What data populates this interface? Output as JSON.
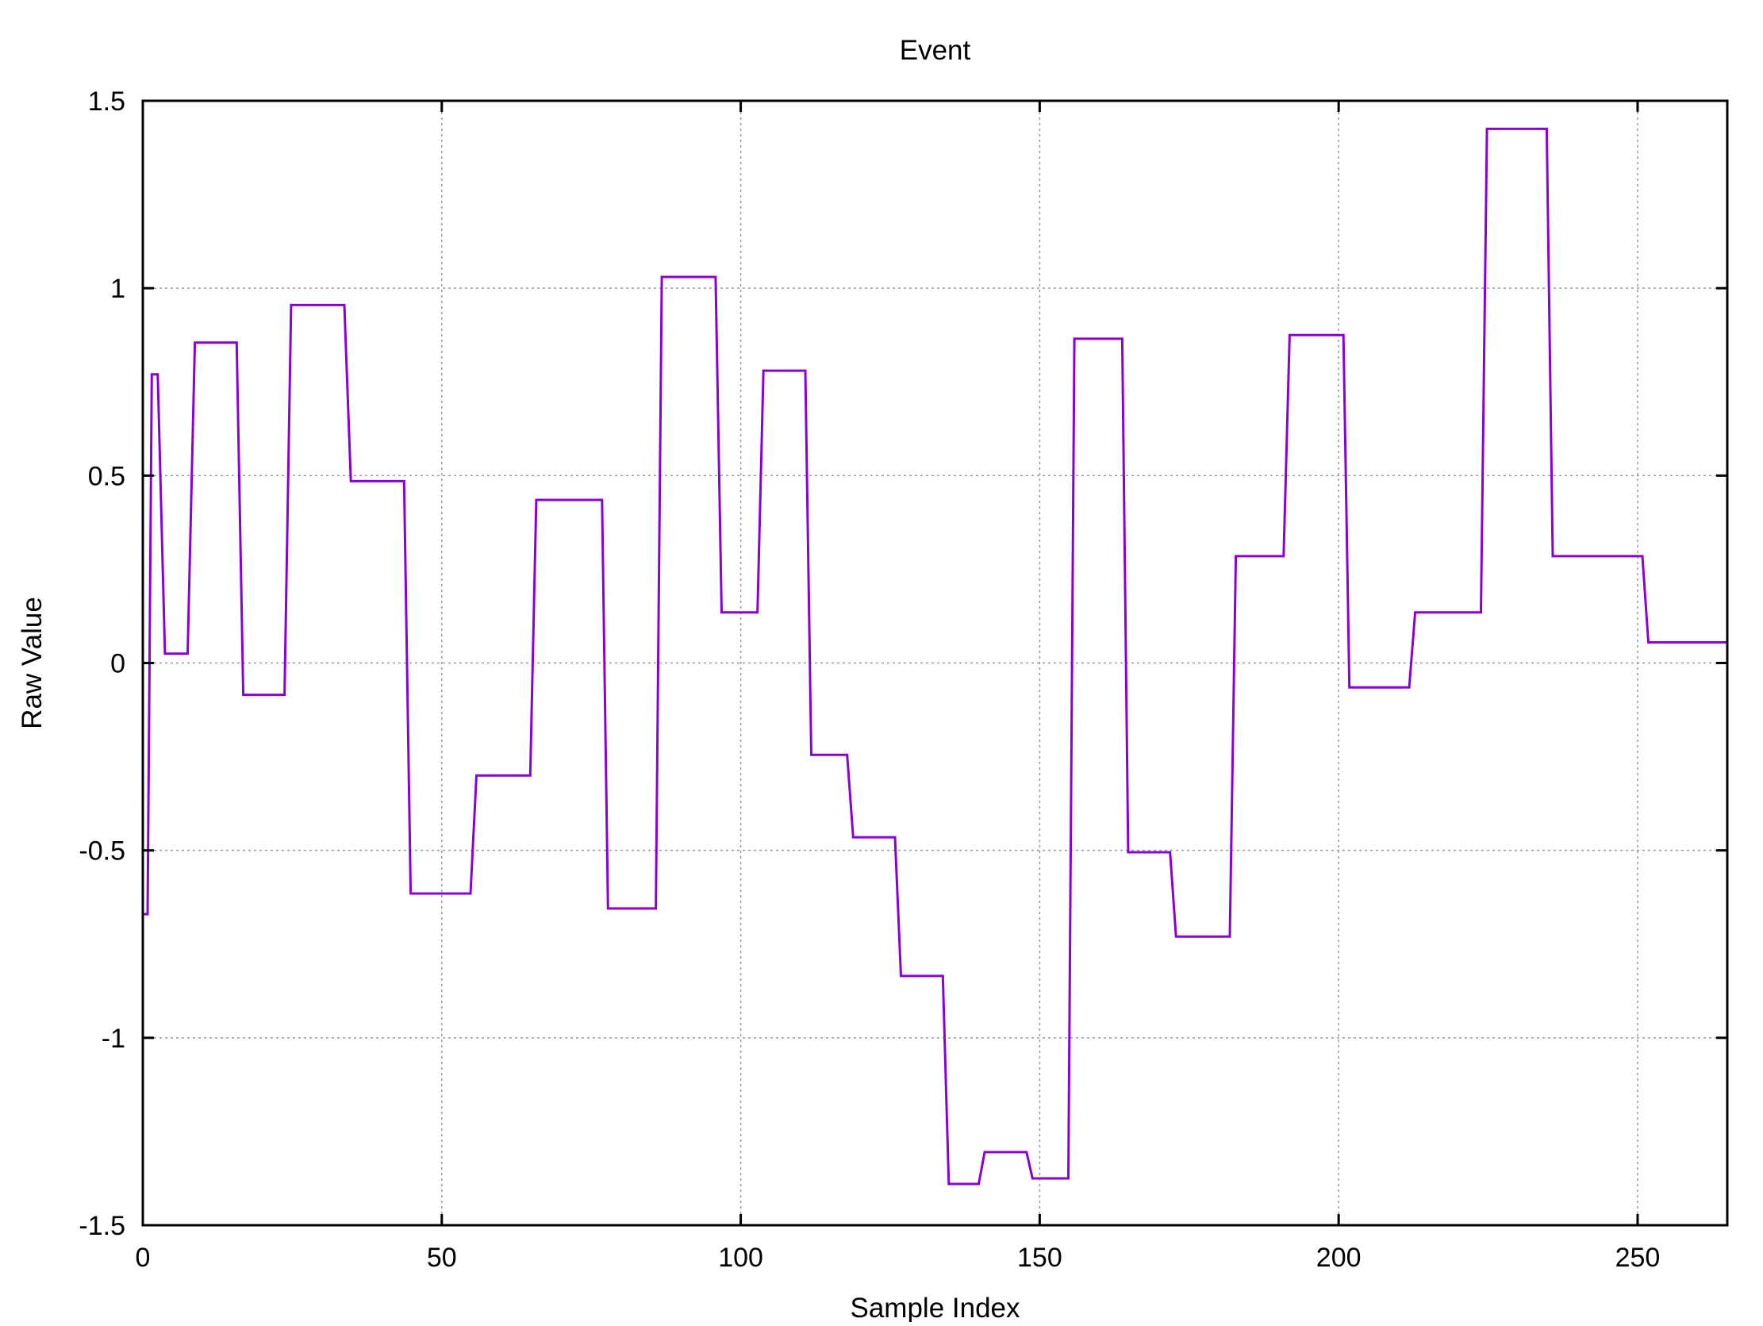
{
  "chart_data": {
    "type": "line",
    "title": "Event",
    "xlabel": "Sample Index",
    "ylabel": "Raw Value",
    "xlim": [
      0,
      265
    ],
    "ylim": [
      -1.5,
      1.5
    ],
    "xticks": [
      0,
      50,
      100,
      150,
      200,
      250
    ],
    "yticks": [
      -1.5,
      -1,
      -0.5,
      0,
      0.5,
      1,
      1.5
    ],
    "xtick_labels": [
      "0",
      "50",
      "100",
      "150",
      "200",
      "250"
    ],
    "ytick_labels": [
      "-1.5",
      "-1",
      "-0.5",
      "0",
      "0.5",
      "1",
      "1.5"
    ],
    "grid": true,
    "color": "#8a00d4",
    "series": [
      {
        "points": [
          [
            0,
            -0.67
          ],
          [
            0.8,
            -0.67
          ],
          [
            1.5,
            0.77
          ],
          [
            2.5,
            0.77
          ],
          [
            3.7,
            0.025
          ],
          [
            7.5,
            0.025
          ],
          [
            8.7,
            0.855
          ],
          [
            15.7,
            0.855
          ],
          [
            16.8,
            -0.085
          ],
          [
            23.7,
            -0.085
          ],
          [
            24.8,
            0.955
          ],
          [
            33.7,
            0.955
          ],
          [
            34.8,
            0.485
          ],
          [
            43.7,
            0.485
          ],
          [
            44.8,
            -0.615
          ],
          [
            54.8,
            -0.615
          ],
          [
            55.8,
            -0.3
          ],
          [
            64.8,
            -0.3
          ],
          [
            65.8,
            0.435
          ],
          [
            76.8,
            0.435
          ],
          [
            77.8,
            -0.655
          ],
          [
            85.8,
            -0.655
          ],
          [
            86.8,
            1.03
          ],
          [
            95.8,
            1.03
          ],
          [
            96.8,
            0.135
          ],
          [
            102.8,
            0.135
          ],
          [
            103.8,
            0.78
          ],
          [
            110.8,
            0.78
          ],
          [
            111.8,
            -0.245
          ],
          [
            117.8,
            -0.245
          ],
          [
            118.8,
            -0.465
          ],
          [
            125.8,
            -0.465
          ],
          [
            126.8,
            -0.835
          ],
          [
            133.8,
            -0.835
          ],
          [
            134.8,
            -1.39
          ],
          [
            139.8,
            -1.39
          ],
          [
            140.8,
            -1.305
          ],
          [
            147.8,
            -1.305
          ],
          [
            148.8,
            -1.375
          ],
          [
            154.8,
            -1.375
          ],
          [
            155.8,
            0.865
          ],
          [
            163.8,
            0.865
          ],
          [
            164.8,
            -0.505
          ],
          [
            171.8,
            -0.505
          ],
          [
            172.8,
            -0.73
          ],
          [
            181.8,
            -0.73
          ],
          [
            182.8,
            0.285
          ],
          [
            190.8,
            0.285
          ],
          [
            191.8,
            0.875
          ],
          [
            200.8,
            0.875
          ],
          [
            201.8,
            -0.065
          ],
          [
            211.8,
            -0.065
          ],
          [
            212.8,
            0.135
          ],
          [
            223.8,
            0.135
          ],
          [
            224.8,
            1.425
          ],
          [
            234.8,
            1.425
          ],
          [
            235.8,
            0.285
          ],
          [
            250.8,
            0.285
          ],
          [
            251.8,
            0.055
          ],
          [
            265,
            0.055
          ]
        ]
      }
    ]
  }
}
